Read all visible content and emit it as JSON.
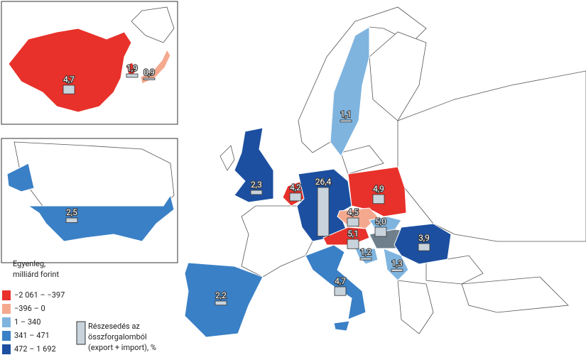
{
  "regions": [
    {
      "label": "4,7",
      "share": 4.7,
      "color": "#e8312a"
    },
    {
      "label": "1,9",
      "share": 1.9,
      "color": "#e8312a"
    },
    {
      "label": "0,9",
      "share": 0.9,
      "color": "#f4a98f"
    },
    {
      "label": "2,5",
      "share": 2.5,
      "color": "#3a80c6"
    },
    {
      "label": "2,3",
      "share": 2.3,
      "color": "#1c4fa0"
    },
    {
      "label": "4,2",
      "share": 4.2,
      "color": "#e8312a"
    },
    {
      "label": "26,4",
      "share": 26.4,
      "color": "#1c4fa0"
    },
    {
      "label": "4,9",
      "share": 4.9,
      "color": "#e8312a"
    },
    {
      "label": "4,5",
      "share": 4.5,
      "color": "#f4a98f"
    },
    {
      "label": "5,0",
      "share": 5.0,
      "color": "#7fb4df"
    },
    {
      "label": "5,1",
      "share": 5.1,
      "color": "#e8312a"
    },
    {
      "label": "3,9",
      "share": 3.9,
      "color": "#1c4fa0"
    },
    {
      "label": "4,7",
      "share": 4.7,
      "color": "#3a80c6"
    },
    {
      "label": "2,2",
      "share": 2.2,
      "color": "#3a80c6"
    },
    {
      "label": "1,1",
      "share": 1.1,
      "color": "#7fb4df"
    },
    {
      "label": "1,2",
      "share": 1.2,
      "color": "#7fb4df"
    },
    {
      "label": "1,3",
      "share": 1.3,
      "color": "#7fb4df"
    }
  ],
  "home": {
    "color": "#6f808c"
  },
  "legend": {
    "title": [
      "Egyenleg,",
      "milliárd forint"
    ],
    "classes": [
      {
        "label": "−2 061 – −397",
        "color": "#e8312a"
      },
      {
        "label": "−396 – 0",
        "color": "#f4a98f"
      },
      {
        "label": "1 – 340",
        "color": "#7fb4df"
      },
      {
        "label": "341 – 471",
        "color": "#3a80c6"
      },
      {
        "label": "472 – 1 692",
        "color": "#1c4fa0"
      }
    ],
    "share_title": [
      "Részesedés az",
      "összforgalomból",
      "(export + import), %"
    ]
  }
}
